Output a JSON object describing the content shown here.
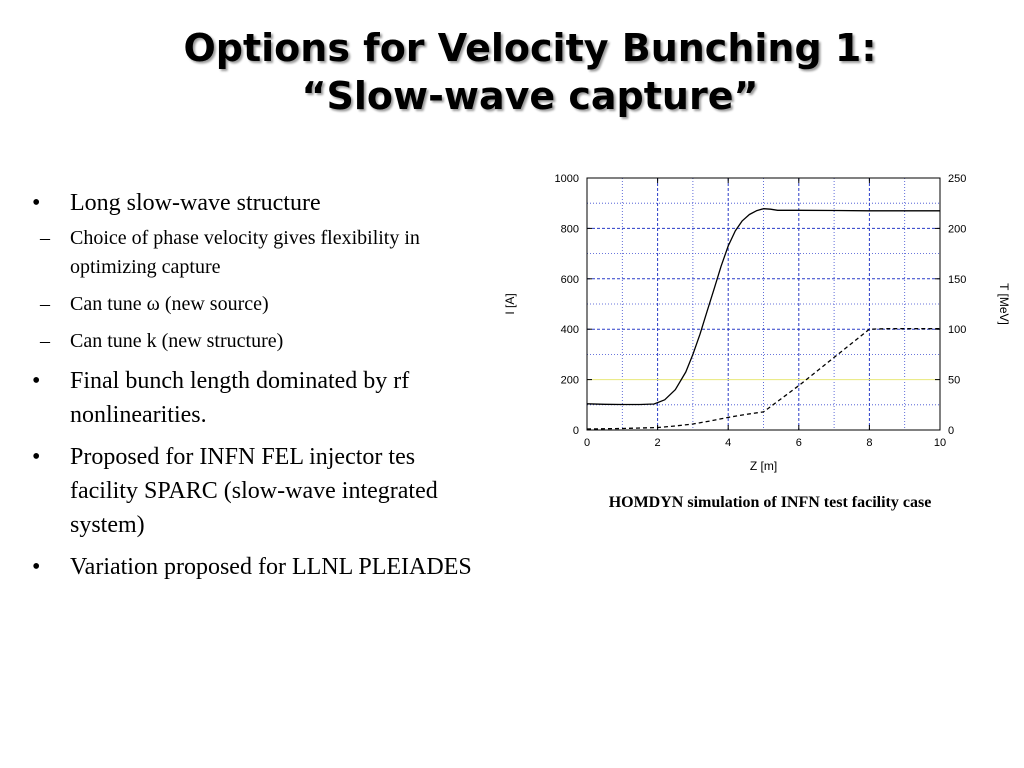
{
  "slide": {
    "title_line1": "Options for Velocity Bunching 1:",
    "title_line2": "“Slow-wave capture”"
  },
  "bullets": {
    "b1": "Long slow-wave structure",
    "b1_sub": [
      "Choice of phase velocity gives flexibility in optimizing capture",
      "Can tune ω (new source)",
      "Can tune k (new structure)"
    ],
    "b2": "Final bunch length dominated by rf nonlinearities.",
    "b3": "Proposed for INFN FEL injector tes facility SPARC (slow-wave integrated system)",
    "b4": "Variation proposed for LLNL PLEIADES",
    "bullet_glyph": "•",
    "dash_glyph": "–"
  },
  "caption": "HOMDYN simulation of INFN test facility case",
  "chart_data": {
    "type": "line",
    "title": "",
    "xlabel": "Z [m]",
    "ylabel": "I [A]",
    "y2label": "T [MeV]",
    "xlim": [
      0,
      10
    ],
    "ylim": [
      0,
      1000
    ],
    "y2lim": [
      0,
      250
    ],
    "x_ticks": [
      "0",
      "2",
      "4",
      "6",
      "8",
      "10"
    ],
    "y_ticks": [
      "0",
      "200",
      "400",
      "600",
      "800",
      "1000"
    ],
    "y2_ticks": [
      "0",
      "50",
      "100",
      "150",
      "200",
      "250"
    ],
    "grid": true,
    "series": [
      {
        "axis": "left",
        "style": "solid",
        "x": [
          0,
          0.5,
          1.0,
          1.5,
          1.9,
          2.2,
          2.5,
          2.8,
          3.0,
          3.2,
          3.4,
          3.6,
          3.8,
          4.0,
          4.2,
          4.4,
          4.6,
          4.8,
          5.0,
          5.2,
          5.4,
          6.0,
          7.0,
          8.0,
          9.0,
          10.0
        ],
        "y": [
          104,
          102,
          101,
          101,
          103,
          120,
          160,
          230,
          300,
          380,
          470,
          560,
          650,
          730,
          790,
          830,
          855,
          870,
          878,
          876,
          872,
          872,
          871,
          870,
          870,
          870
        ]
      },
      {
        "axis": "right",
        "style": "dashed",
        "x": [
          0,
          1.0,
          2.0,
          2.5,
          3.0,
          3.5,
          4.0,
          4.5,
          5.0,
          6.0,
          7.0,
          8.0,
          8.5,
          9.0,
          10.0
        ],
        "y": [
          1,
          1.5,
          2.5,
          4,
          6,
          9,
          12.5,
          15.5,
          18,
          44,
          72,
          100,
          100.5,
          100.5,
          100.5
        ]
      }
    ],
    "colors": {
      "line": "#000000",
      "grid_major": "#2a3cc8",
      "grid_minor": "#3a4ad0",
      "highlight_grid": "#e8e87a"
    }
  }
}
